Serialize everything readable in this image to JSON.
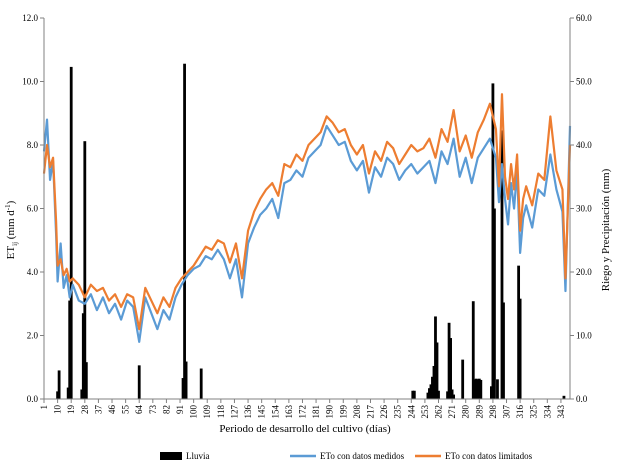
{
  "chart_data": {
    "type": "line",
    "title": "",
    "xlabel": "Periodo de desarrollo del cultivo (días)",
    "ylabel_left": "ET",
    "ylabel_left_sub": "ij",
    "ylabel_left_unit_pre": " (mm d",
    "ylabel_left_unit_sup": "-1",
    "ylabel_left_unit_post": ")",
    "ylabel_right": "Riego y Precipitación (mm)",
    "xlim": [
      1,
      349
    ],
    "ylim_left": [
      0,
      12
    ],
    "ylim_right": [
      0,
      60
    ],
    "left_ticks": [
      "0.0",
      "2.0",
      "4.0",
      "6.0",
      "8.0",
      "10.0",
      "12.0"
    ],
    "right_ticks": [
      "0.0",
      "10.0",
      "20.0",
      "30.0",
      "40.0",
      "50.0",
      "60.0"
    ],
    "x_ticks": [
      1,
      10,
      19,
      28,
      37,
      46,
      55,
      64,
      73,
      82,
      91,
      100,
      109,
      118,
      127,
      136,
      145,
      154,
      163,
      172,
      181,
      190,
      199,
      208,
      217,
      226,
      235,
      244,
      253,
      262,
      271,
      280,
      289,
      298,
      307,
      316,
      325,
      334,
      343
    ],
    "grid": false,
    "legend_position": "bottom",
    "colors": {
      "lluvia": "#000000",
      "medidos": "#5b9bd5",
      "limitados": "#ed7d31"
    },
    "lluvia": {
      "name": "Lluvia",
      "x": [
        10,
        11,
        17,
        18,
        19,
        26,
        27,
        28,
        29,
        64,
        93,
        94,
        95,
        105,
        245,
        246,
        255,
        256,
        257,
        258,
        259,
        260,
        261,
        262,
        268,
        269,
        270,
        271,
        272,
        278,
        285,
        286,
        287,
        288,
        289,
        290,
        297,
        298,
        299,
        301,
        304,
        305,
        315,
        316,
        345
      ],
      "y": [
        1.2,
        4.5,
        1.8,
        15.5,
        52.3,
        1.5,
        13.5,
        40.6,
        5.8,
        5.3,
        3.3,
        52.8,
        5.9,
        4.8,
        1.3,
        1.3,
        1.0,
        1.7,
        2.3,
        3.5,
        5.2,
        13.0,
        8.9,
        1.3,
        1.2,
        12.0,
        9.6,
        1.5,
        0.7,
        6.2,
        15.4,
        3.1,
        3.2,
        3.1,
        3.2,
        3.0,
        2.0,
        49.7,
        30.0,
        3.1,
        42.3,
        15.2,
        21.0,
        15.8,
        0.5
      ]
    },
    "series": [
      {
        "name": "ETo con datos medidos",
        "x": [
          1,
          3,
          5,
          7,
          9,
          10,
          12,
          14,
          16,
          18,
          20,
          24,
          28,
          32,
          36,
          40,
          44,
          48,
          52,
          56,
          60,
          64,
          68,
          72,
          76,
          80,
          84,
          88,
          92,
          96,
          100,
          104,
          108,
          112,
          116,
          120,
          124,
          128,
          132,
          136,
          140,
          144,
          148,
          152,
          156,
          160,
          164,
          168,
          172,
          176,
          180,
          184,
          188,
          192,
          196,
          200,
          204,
          208,
          212,
          216,
          220,
          224,
          228,
          232,
          236,
          240,
          244,
          248,
          252,
          256,
          260,
          264,
          268,
          272,
          276,
          280,
          284,
          288,
          292,
          296,
          300,
          302,
          304,
          306,
          308,
          310,
          312,
          314,
          316,
          318,
          320,
          324,
          328,
          332,
          336,
          340,
          344,
          346,
          349
        ],
        "y": [
          7.8,
          8.8,
          6.9,
          7.5,
          5.2,
          3.7,
          4.9,
          3.5,
          3.9,
          3.2,
          3.6,
          3.1,
          3.0,
          3.3,
          2.8,
          3.2,
          2.7,
          3.0,
          2.5,
          3.1,
          2.9,
          1.8,
          3.2,
          2.7,
          2.2,
          2.8,
          2.5,
          3.2,
          3.6,
          3.9,
          4.1,
          4.2,
          4.5,
          4.4,
          4.7,
          4.4,
          3.8,
          4.4,
          3.2,
          4.9,
          5.4,
          5.8,
          6.0,
          6.3,
          5.7,
          6.8,
          6.9,
          7.2,
          7.0,
          7.6,
          7.8,
          8.0,
          8.6,
          8.3,
          8.0,
          8.1,
          7.5,
          7.2,
          7.5,
          6.5,
          7.3,
          7.0,
          7.6,
          7.4,
          6.9,
          7.2,
          7.4,
          7.1,
          7.3,
          7.5,
          6.8,
          7.8,
          7.4,
          8.2,
          7.0,
          7.6,
          6.8,
          7.6,
          7.9,
          8.2,
          7.6,
          6.2,
          7.4,
          6.3,
          5.5,
          6.8,
          6.0,
          7.2,
          4.6,
          5.7,
          6.1,
          5.4,
          6.6,
          6.4,
          7.7,
          6.6,
          5.9,
          3.4,
          8.6
        ]
      },
      {
        "name": "ETo con datos limitados",
        "x": [
          1,
          3,
          5,
          7,
          9,
          10,
          12,
          14,
          16,
          18,
          20,
          24,
          28,
          32,
          36,
          40,
          44,
          48,
          52,
          56,
          60,
          64,
          68,
          72,
          76,
          80,
          84,
          88,
          92,
          96,
          100,
          104,
          108,
          112,
          116,
          120,
          124,
          128,
          132,
          136,
          140,
          144,
          148,
          152,
          156,
          160,
          164,
          168,
          172,
          176,
          180,
          184,
          188,
          192,
          196,
          200,
          204,
          208,
          212,
          216,
          220,
          224,
          228,
          232,
          236,
          240,
          244,
          248,
          252,
          256,
          260,
          264,
          268,
          272,
          276,
          280,
          284,
          288,
          292,
          296,
          300,
          302,
          304,
          306,
          308,
          310,
          312,
          314,
          316,
          318,
          320,
          324,
          328,
          332,
          336,
          340,
          344,
          346,
          349
        ],
        "y": [
          7.1,
          8.0,
          7.3,
          7.6,
          5.6,
          4.2,
          4.4,
          3.9,
          4.1,
          3.7,
          3.8,
          3.6,
          3.2,
          3.6,
          3.4,
          3.5,
          3.1,
          3.3,
          2.9,
          3.3,
          3.2,
          2.2,
          3.5,
          3.1,
          2.7,
          3.2,
          2.9,
          3.5,
          3.8,
          4.0,
          4.2,
          4.5,
          4.8,
          4.7,
          5.0,
          4.9,
          4.3,
          4.9,
          3.8,
          5.3,
          5.9,
          6.3,
          6.6,
          6.8,
          6.4,
          7.4,
          7.3,
          7.7,
          7.5,
          8.0,
          8.2,
          8.4,
          8.9,
          8.7,
          8.4,
          8.5,
          8.0,
          7.7,
          8.0,
          7.1,
          7.8,
          7.5,
          8.1,
          7.9,
          7.4,
          7.7,
          8.0,
          7.8,
          7.9,
          8.2,
          7.6,
          8.5,
          8.1,
          9.1,
          7.8,
          8.3,
          7.6,
          8.4,
          8.8,
          9.3,
          8.5,
          6.7,
          9.6,
          7.0,
          6.3,
          7.4,
          6.6,
          7.7,
          5.3,
          6.3,
          6.7,
          6.1,
          7.1,
          6.9,
          8.9,
          7.2,
          6.6,
          3.8,
          8.0
        ]
      }
    ]
  }
}
